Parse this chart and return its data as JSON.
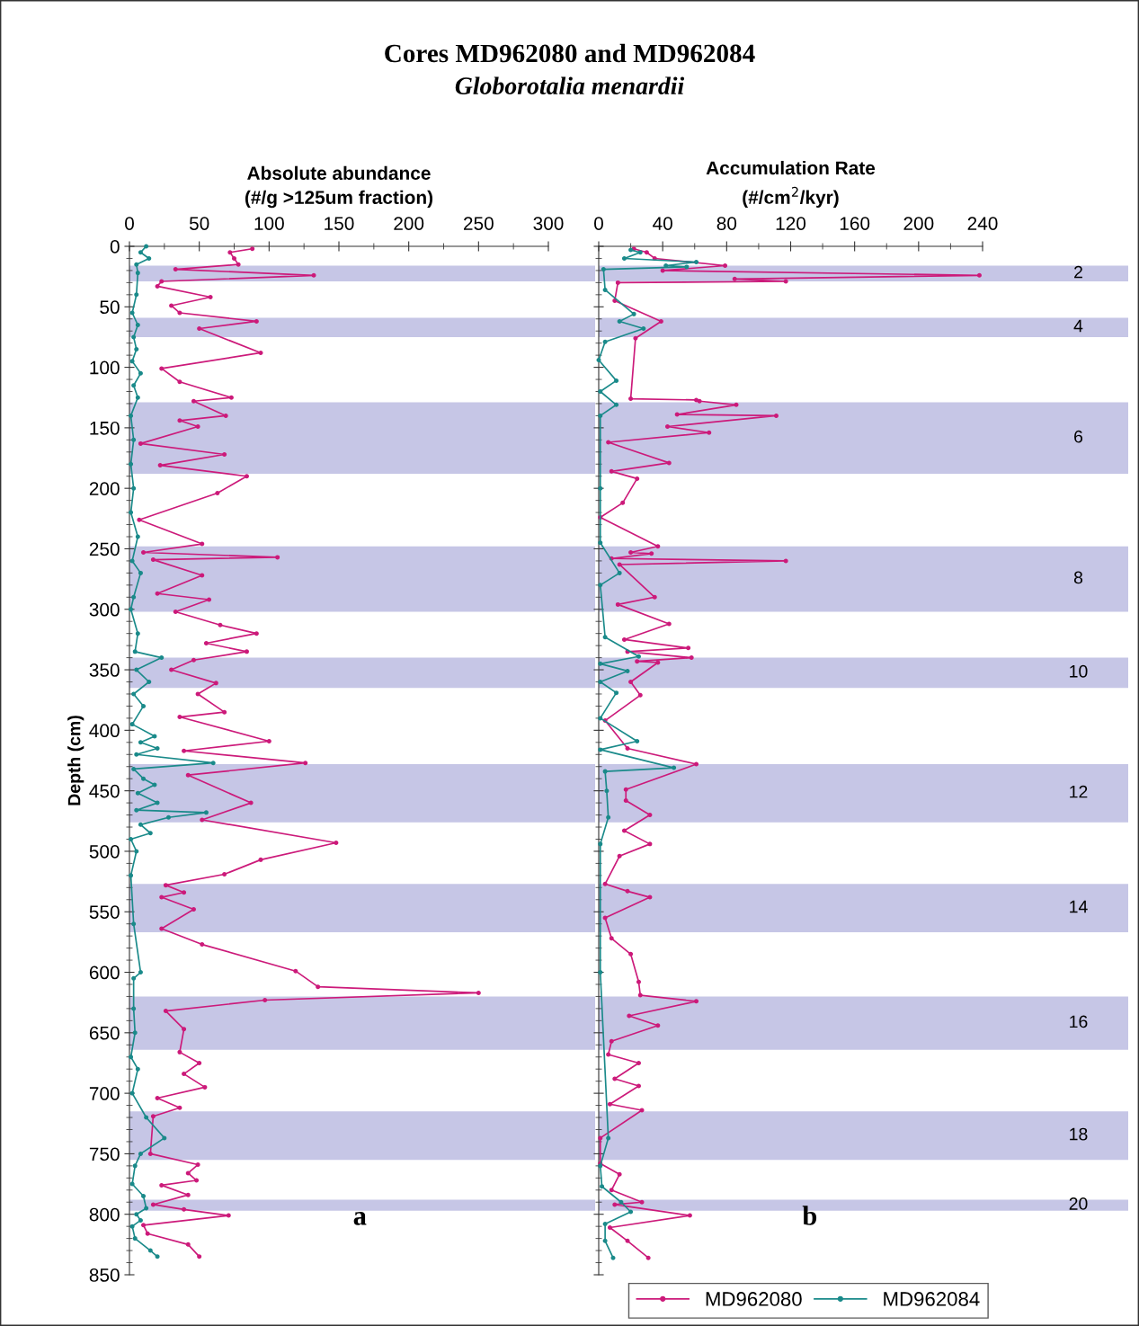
{
  "chart_data": [
    {
      "type": "line",
      "title": "Cores MD962080 and MD962084",
      "subtitle": "Globorotalia menardii",
      "orientation": "horizontal",
      "xlabel": "Absolute abundance\n(#/g >125um fraction)",
      "ylabel": "Depth (cm)",
      "xlim": [
        0,
        300
      ],
      "xticks": [
        0,
        50,
        100,
        150,
        200,
        250,
        300
      ],
      "ylim": [
        850,
        0
      ],
      "yticks": [
        0,
        50,
        100,
        150,
        200,
        250,
        300,
        350,
        400,
        450,
        500,
        550,
        600,
        650,
        700,
        750,
        800,
        850
      ],
      "marker": "circle",
      "legend": "bottom right",
      "annotations": [
        "a"
      ],
      "series": [
        {
          "name": "MD962080",
          "color": "#cc1a7a",
          "x": [
            2,
            5,
            10,
            15,
            19,
            24,
            29,
            33,
            42,
            49,
            55,
            62,
            68,
            88,
            101,
            112,
            125,
            128,
            140,
            144,
            149,
            163,
            172,
            181,
            190,
            204,
            226,
            246,
            253,
            257,
            259,
            272,
            287,
            292,
            302,
            313,
            320,
            328,
            335,
            342,
            350,
            361,
            370,
            385,
            389,
            409,
            417,
            427,
            437,
            460,
            474,
            493,
            507,
            519,
            528,
            534,
            538,
            548,
            564,
            577,
            599,
            612,
            617,
            623,
            632,
            647,
            666,
            675,
            684,
            695,
            704,
            712,
            719,
            750,
            759,
            766,
            772,
            776,
            784,
            792,
            796,
            801,
            809,
            816,
            825,
            835
          ],
          "values": [
            88,
            72,
            75,
            78,
            33,
            132,
            23,
            20,
            58,
            30,
            36,
            91,
            50,
            94,
            23,
            36,
            73,
            46,
            69,
            36,
            49,
            8,
            68,
            22,
            84,
            63,
            7,
            52,
            10,
            106,
            17,
            52,
            20,
            57,
            33,
            65,
            91,
            55,
            84,
            46,
            30,
            62,
            49,
            68,
            36,
            100,
            39,
            126,
            42,
            87,
            52,
            148,
            94,
            68,
            26,
            39,
            23,
            46,
            23,
            52,
            119,
            135,
            250,
            97,
            26,
            39,
            36,
            50,
            39,
            54,
            20,
            36,
            17,
            15,
            49,
            42,
            48,
            23,
            42,
            17,
            39,
            71,
            10,
            13,
            42,
            50
          ]
        },
        {
          "name": "MD962084",
          "color": "#1a8a8a",
          "x": [
            0,
            5,
            10,
            15,
            22,
            40,
            55,
            65,
            75,
            85,
            95,
            105,
            115,
            125,
            140,
            160,
            180,
            200,
            220,
            240,
            260,
            270,
            290,
            300,
            320,
            335,
            340,
            350,
            360,
            370,
            380,
            395,
            405,
            410,
            415,
            420,
            427,
            432,
            440,
            445,
            452,
            460,
            466,
            468,
            472,
            478,
            485,
            490,
            500,
            520,
            560,
            600,
            605,
            630,
            650,
            670,
            680,
            700,
            720,
            737,
            750,
            760,
            775,
            785,
            795,
            800,
            805,
            810,
            820,
            830,
            835
          ],
          "values": [
            12,
            8,
            14,
            5,
            6,
            5,
            2,
            6,
            3,
            5,
            2,
            8,
            3,
            6,
            1,
            3,
            1,
            3,
            1,
            6,
            2,
            8,
            3,
            1,
            6,
            4,
            23,
            5,
            14,
            3,
            10,
            2,
            18,
            8,
            20,
            5,
            60,
            3,
            10,
            18,
            6,
            20,
            5,
            55,
            28,
            8,
            15,
            1,
            5,
            1,
            3,
            8,
            3,
            3,
            4,
            1,
            6,
            2,
            12,
            25,
            8,
            4,
            2,
            10,
            12,
            5,
            8,
            2,
            4,
            15,
            20
          ]
        }
      ],
      "bands": [
        {
          "axis": "y",
          "from": 16,
          "to": 29,
          "color": "#c6c6e6"
        },
        {
          "axis": "y",
          "from": 59,
          "to": 75,
          "color": "#c6c6e6"
        },
        {
          "axis": "y",
          "from": 129,
          "to": 188,
          "color": "#c6c6e6"
        },
        {
          "axis": "y",
          "from": 248,
          "to": 302,
          "color": "#c6c6e6"
        },
        {
          "axis": "y",
          "from": 340,
          "to": 365,
          "color": "#c6c6e6"
        },
        {
          "axis": "y",
          "from": 428,
          "to": 476,
          "color": "#c6c6e6"
        },
        {
          "axis": "y",
          "from": 527,
          "to": 567,
          "color": "#c6c6e6"
        },
        {
          "axis": "y",
          "from": 620,
          "to": 664,
          "color": "#c6c6e6"
        },
        {
          "axis": "y",
          "from": 715,
          "to": 755,
          "color": "#c6c6e6"
        },
        {
          "axis": "y",
          "from": 788,
          "to": 797,
          "color": "#c6c6e6"
        }
      ]
    },
    {
      "type": "line",
      "orientation": "horizontal",
      "xlabel": "Accumulation Rate\n(#/cm$^{2}$/kyr)",
      "xlim": [
        0,
        240
      ],
      "xticks": [
        0,
        40,
        80,
        120,
        160,
        200,
        240
      ],
      "ylim": [
        850,
        0
      ],
      "yticks": [
        0,
        50,
        100,
        150,
        200,
        250,
        300,
        350,
        400,
        450,
        500,
        550,
        600,
        650,
        700,
        750,
        800,
        850
      ],
      "tick_labels": "x",
      "marker": "circle",
      "annotations": [
        "b"
      ],
      "series": [
        {
          "color": "#cc1a7a",
          "x": [
            2,
            5,
            10,
            16,
            20,
            24,
            27,
            29,
            30,
            45,
            62,
            76,
            126,
            127,
            128,
            131,
            139,
            140,
            149,
            154,
            162,
            179,
            186,
            192,
            212,
            224,
            248,
            253,
            254,
            258,
            260,
            263,
            290,
            296,
            312,
            325,
            332,
            335,
            340,
            343,
            344,
            360,
            371,
            392,
            415,
            428,
            449,
            458,
            470,
            483,
            494,
            504,
            527,
            533,
            538,
            555,
            572,
            585,
            608,
            619,
            624,
            636,
            644,
            657,
            668,
            675,
            688,
            694,
            709,
            714,
            737,
            758,
            767,
            780,
            790,
            792,
            801,
            811,
            822,
            836
          ],
          "values": [
            22,
            30,
            35,
            79,
            40,
            238,
            85,
            117,
            12,
            10,
            39,
            23,
            20,
            61,
            63,
            86,
            49,
            111,
            43,
            69,
            6,
            44,
            8,
            24,
            15,
            1,
            37,
            20,
            33,
            8,
            117,
            13,
            35,
            12,
            44,
            16,
            56,
            18,
            58,
            24,
            37,
            20,
            26,
            4,
            18,
            61,
            17,
            17,
            32,
            16,
            32,
            13,
            4,
            18,
            32,
            4,
            8,
            20,
            25,
            26,
            61,
            19,
            37,
            8,
            6,
            25,
            10,
            25,
            7,
            27,
            1,
            1,
            13,
            8,
            27,
            10,
            57,
            7,
            18,
            31
          ]
        },
        {
          "color": "#1a8a8a",
          "x": [
            3,
            5,
            10,
            13,
            16,
            17,
            19,
            36,
            56,
            62,
            68,
            79,
            94,
            111,
            120,
            131,
            140,
            200,
            245,
            270,
            280,
            323,
            339,
            345,
            351,
            360,
            369,
            390,
            409,
            416,
            431,
            434,
            450,
            472,
            494,
            600,
            737,
            760,
            777,
            790,
            798,
            808,
            822,
            836
          ],
          "values": [
            20,
            26,
            16,
            61,
            42,
            55,
            3,
            4,
            22,
            13,
            28,
            4,
            0,
            11,
            1,
            11,
            1,
            1,
            1,
            13,
            1,
            4,
            25,
            1,
            18,
            1,
            11,
            1,
            24,
            1,
            47,
            4,
            5,
            6,
            1,
            1,
            6,
            1,
            2,
            14,
            20,
            4,
            4,
            9
          ]
        }
      ],
      "bands": [
        {
          "axis": "y",
          "from": 16,
          "to": 29,
          "label": "2",
          "color": "#c6c6e6"
        },
        {
          "axis": "y",
          "from": 59,
          "to": 75,
          "label": "4",
          "color": "#c6c6e6"
        },
        {
          "axis": "y",
          "from": 129,
          "to": 188,
          "label": "6",
          "color": "#c6c6e6"
        },
        {
          "axis": "y",
          "from": 248,
          "to": 302,
          "label": "8",
          "color": "#c6c6e6"
        },
        {
          "axis": "y",
          "from": 340,
          "to": 365,
          "label": "10",
          "color": "#c6c6e6"
        },
        {
          "axis": "y",
          "from": 428,
          "to": 476,
          "label": "12",
          "color": "#c6c6e6"
        },
        {
          "axis": "y",
          "from": 527,
          "to": 567,
          "label": "14",
          "color": "#c6c6e6"
        },
        {
          "axis": "y",
          "from": 620,
          "to": 664,
          "label": "16",
          "color": "#c6c6e6"
        },
        {
          "axis": "y",
          "from": 715,
          "to": 755,
          "label": "18",
          "color": "#c6c6e6"
        },
        {
          "axis": "y",
          "from": 788,
          "to": 797,
          "label": "20",
          "color": "#c6c6e6"
        }
      ]
    }
  ]
}
